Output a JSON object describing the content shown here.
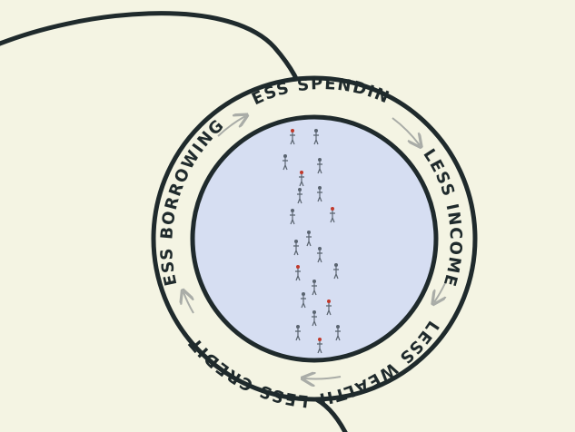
{
  "diagram": {
    "stages": [
      {
        "label": "LESS SPENDING"
      },
      {
        "label": "LESS INCOME"
      },
      {
        "label": "LESS WEALTH"
      },
      {
        "label": "LESS CREDIT"
      },
      {
        "label": "LESS BORROWING"
      }
    ],
    "colors": {
      "background": "#f4f4e3",
      "ring_stroke": "#1f2a2c",
      "inner_fill": "#d6def2",
      "arrow": "#a9aca7",
      "figure": "#5a6470",
      "accent": "#c0392b"
    }
  }
}
